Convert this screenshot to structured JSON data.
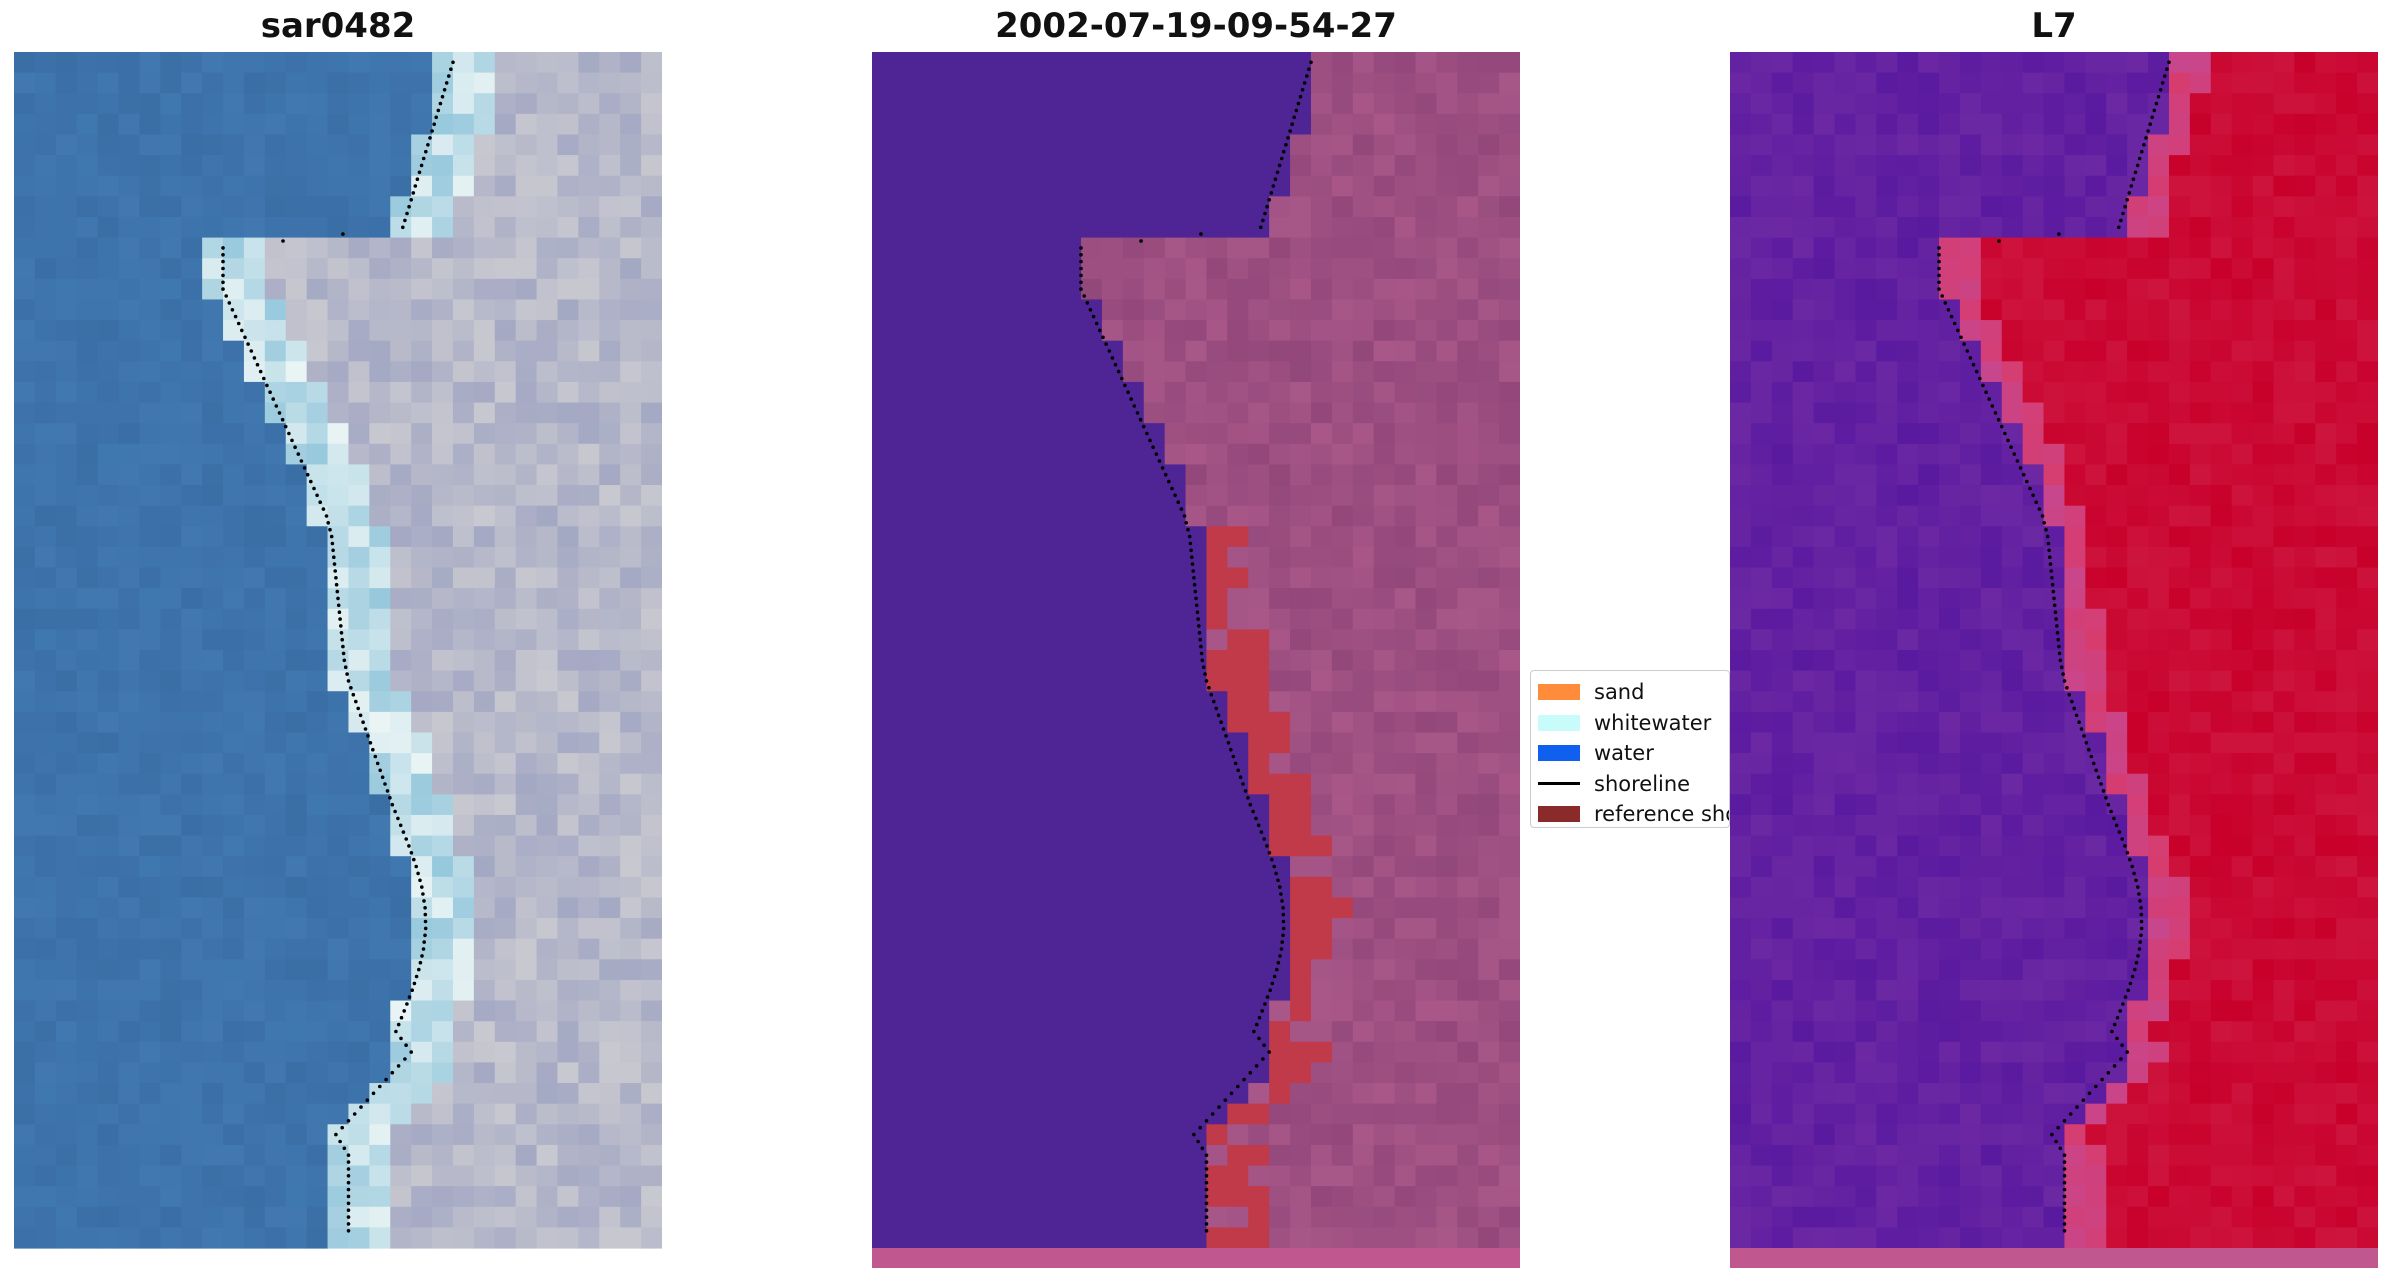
{
  "panels": [
    {
      "title": "sar0482",
      "kind": "rgb"
    },
    {
      "title": "2002-07-19-09-54-27",
      "kind": "classified"
    },
    {
      "title": "L7",
      "kind": "index"
    }
  ],
  "legend": {
    "items": [
      {
        "label": "sand",
        "color": "#ff8c3a",
        "kind": "patch"
      },
      {
        "label": "whitewater",
        "color": "#c8fcfa",
        "kind": "patch"
      },
      {
        "label": "water",
        "color": "#1060f0",
        "kind": "patch"
      },
      {
        "label": "shoreline",
        "color": "#000000",
        "kind": "line"
      },
      {
        "label": "reference shoreline",
        "color": "#8a2a2a",
        "kind": "patch"
      }
    ]
  },
  "colors": {
    "ocean_rgb": "#3a6fa6",
    "coast_rgb": "#c8c8d0",
    "water_class": "#4f2495",
    "land_class": "#a85788",
    "sand_class": "#c03a4a",
    "index_low": "#5a1aa0",
    "index_high": "#c8002a",
    "strip": "#c0588f"
  }
}
